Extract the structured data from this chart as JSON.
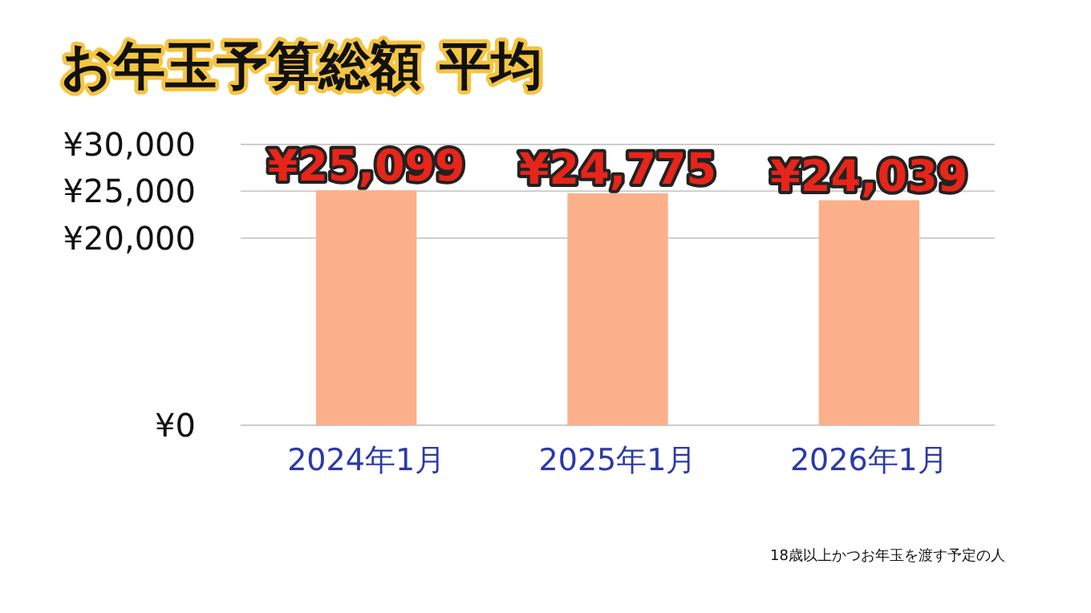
{
  "chart_data": {
    "type": "bar",
    "title": "お年玉予算総額 平均",
    "categories": [
      "2024年1月",
      "2025年1月",
      "2026年1月"
    ],
    "values": [
      25099,
      24775,
      24039
    ],
    "value_labels": [
      "¥25,099",
      "¥24,775",
      "¥24,039"
    ],
    "color": "#fcb08a",
    "ylim": [
      0,
      30000
    ],
    "yticks": [
      {
        "value": 0,
        "label": "¥0"
      },
      {
        "value": 20000,
        "label": "¥20,000"
      },
      {
        "value": 25000,
        "label": "¥25,000"
      },
      {
        "value": 30000,
        "label": "¥30,000"
      }
    ],
    "grid": "y",
    "annotations": [
      "18歳以上かつお年玉を渡す予定の人"
    ]
  }
}
